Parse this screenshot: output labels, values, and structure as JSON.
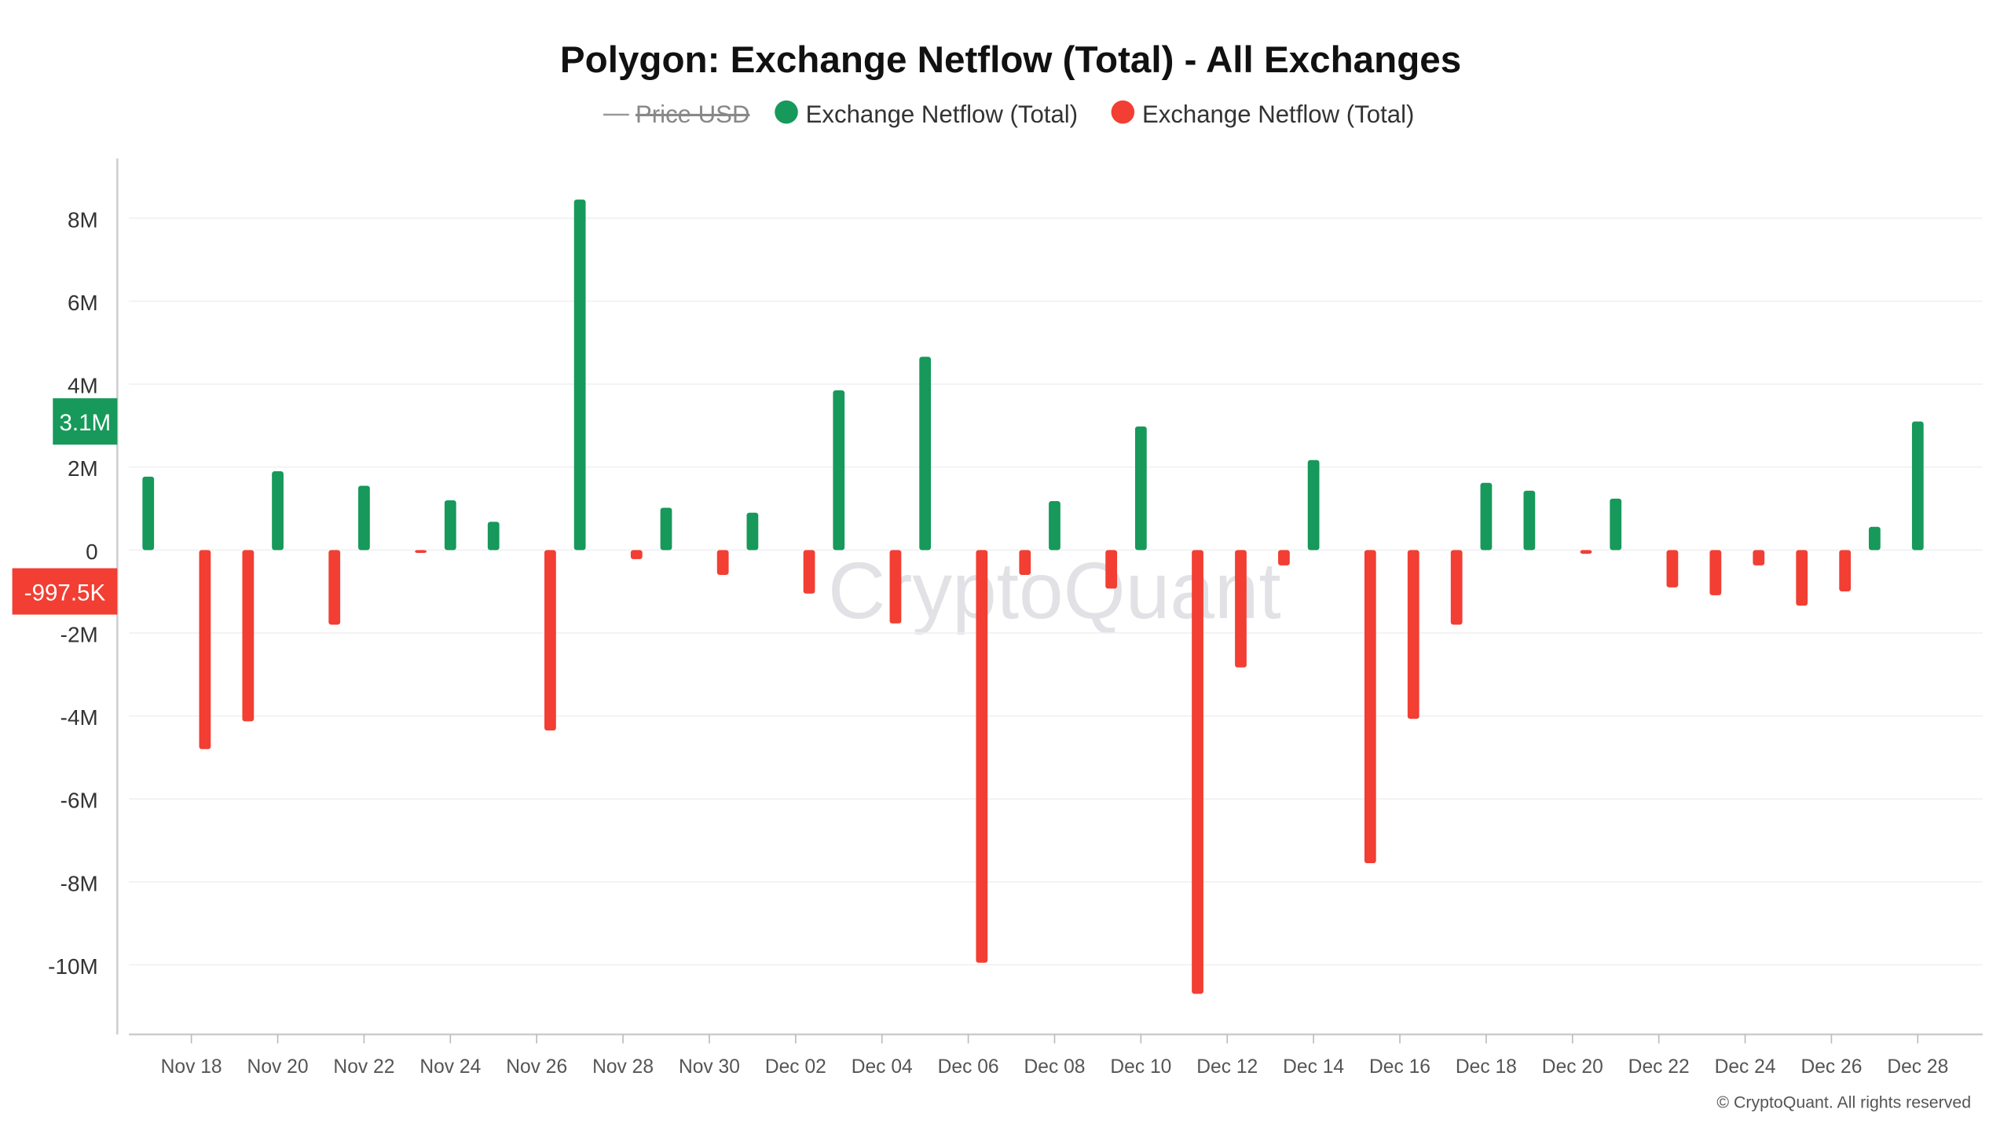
{
  "chart_data": {
    "type": "bar",
    "title": "Polygon: Exchange Netflow (Total) - All Exchanges",
    "legend": [
      {
        "name": "Price USD",
        "hidden": true,
        "color": "#888888"
      },
      {
        "name": "Exchange Netflow (Total)",
        "color": "#16995a"
      },
      {
        "name": "Exchange Netflow (Total)",
        "color": "#f23e33"
      }
    ],
    "legend_placement": "top-center",
    "grid": true,
    "ylim": [
      -11700000,
      9300000
    ],
    "y_ticks": [
      "8M",
      "6M",
      "4M",
      "2M",
      "0",
      "-2M",
      "-4M",
      "-6M",
      "-8M",
      "-10M"
    ],
    "y_tick_values": [
      8000000,
      6000000,
      4000000,
      2000000,
      0,
      -2000000,
      -4000000,
      -6000000,
      -8000000,
      -10000000
    ],
    "x_ticks": [
      "Nov 18",
      "Nov 20",
      "Nov 22",
      "Nov 24",
      "Nov 26",
      "Nov 28",
      "Nov 30",
      "Dec 02",
      "Dec 04",
      "Dec 06",
      "Dec 08",
      "Dec 10",
      "Dec 12",
      "Dec 14",
      "Dec 16",
      "Dec 18",
      "Dec 20",
      "Dec 22",
      "Dec 24",
      "Dec 26",
      "Dec 28"
    ],
    "categories": [
      "Nov 17",
      "Nov 18",
      "Nov 19",
      "Nov 20",
      "Nov 21",
      "Nov 22",
      "Nov 23",
      "Nov 24",
      "Nov 25",
      "Nov 26",
      "Nov 27",
      "Nov 28",
      "Nov 29",
      "Nov 30",
      "Dec 01",
      "Dec 02",
      "Dec 03",
      "Dec 04",
      "Dec 05",
      "Dec 06",
      "Dec 07",
      "Dec 08",
      "Dec 09",
      "Dec 10",
      "Dec 11",
      "Dec 12",
      "Dec 13",
      "Dec 14",
      "Dec 15",
      "Dec 16",
      "Dec 17",
      "Dec 18",
      "Dec 19",
      "Dec 20",
      "Dec 21",
      "Dec 22",
      "Dec 23",
      "Dec 24",
      "Dec 25",
      "Dec 26",
      "Dec 27",
      "Dec 28"
    ],
    "values": [
      1770000,
      -4800000,
      -4130000,
      1900000,
      -1800000,
      1550000,
      -70000,
      1200000,
      680000,
      -4350000,
      8450000,
      -220000,
      1020000,
      -600000,
      900000,
      -1050000,
      3850000,
      -1770000,
      4660000,
      -9950000,
      -600000,
      1180000,
      -930000,
      2980000,
      -10700000,
      -2830000,
      -370000,
      2170000,
      -7550000,
      -4070000,
      -1800000,
      1620000,
      1430000,
      -90000,
      1240000,
      -900000,
      -1090000,
      -370000,
      -1340000,
      -997500,
      560000,
      3100000
    ],
    "positive_color": "#16995a",
    "negative_color": "#f23e33",
    "badges": [
      {
        "label": "3.1M",
        "value": 3100000,
        "color": "#16995a"
      },
      {
        "label": "-997.5K",
        "value": -997500,
        "color": "#f23e33"
      }
    ],
    "watermark": "CryptoQuant",
    "copyright": "© CryptoQuant. All rights reserved"
  }
}
